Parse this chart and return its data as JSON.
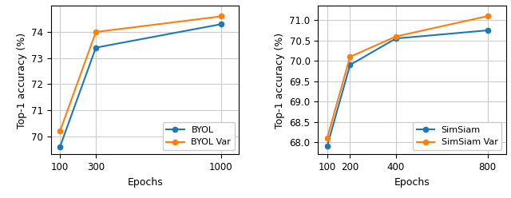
{
  "left": {
    "epochs": [
      100,
      300,
      1000
    ],
    "byol": [
      69.6,
      73.4,
      74.3
    ],
    "byol_var": [
      70.2,
      74.0,
      74.6
    ],
    "xlabel": "Epochs",
    "ylabel": "Top-1 accuracy (%)",
    "legend": [
      "BYOL",
      "BYOL Var"
    ],
    "xticks": [
      100,
      300,
      1000
    ],
    "yticks": [
      70,
      71,
      72,
      73,
      74
    ],
    "xlim": [
      50,
      1100
    ],
    "ylim": [
      69.3,
      75.0
    ]
  },
  "right": {
    "epochs": [
      100,
      200,
      400,
      800
    ],
    "simsiam": [
      67.9,
      69.9,
      70.55,
      70.75
    ],
    "simsiam_var": [
      68.1,
      70.1,
      70.6,
      71.1
    ],
    "xlabel": "Epochs",
    "ylabel": "Top-1 accuracy (%)",
    "legend": [
      "SimSiam",
      "SimSiam Var"
    ],
    "xticks": [
      100,
      200,
      400,
      800
    ],
    "yticks": [
      68.0,
      68.5,
      69.0,
      69.5,
      70.0,
      70.5,
      71.0
    ],
    "xlim": [
      60,
      880
    ],
    "ylim": [
      67.7,
      71.35
    ]
  },
  "color_blue": "#1f77b4",
  "color_orange": "#ff7f0e",
  "marker": "o",
  "linewidth": 1.5,
  "markersize": 4.5,
  "grid_color": "#cccccc",
  "legend_fontsize": 8,
  "tick_fontsize": 8.5,
  "label_fontsize": 9
}
